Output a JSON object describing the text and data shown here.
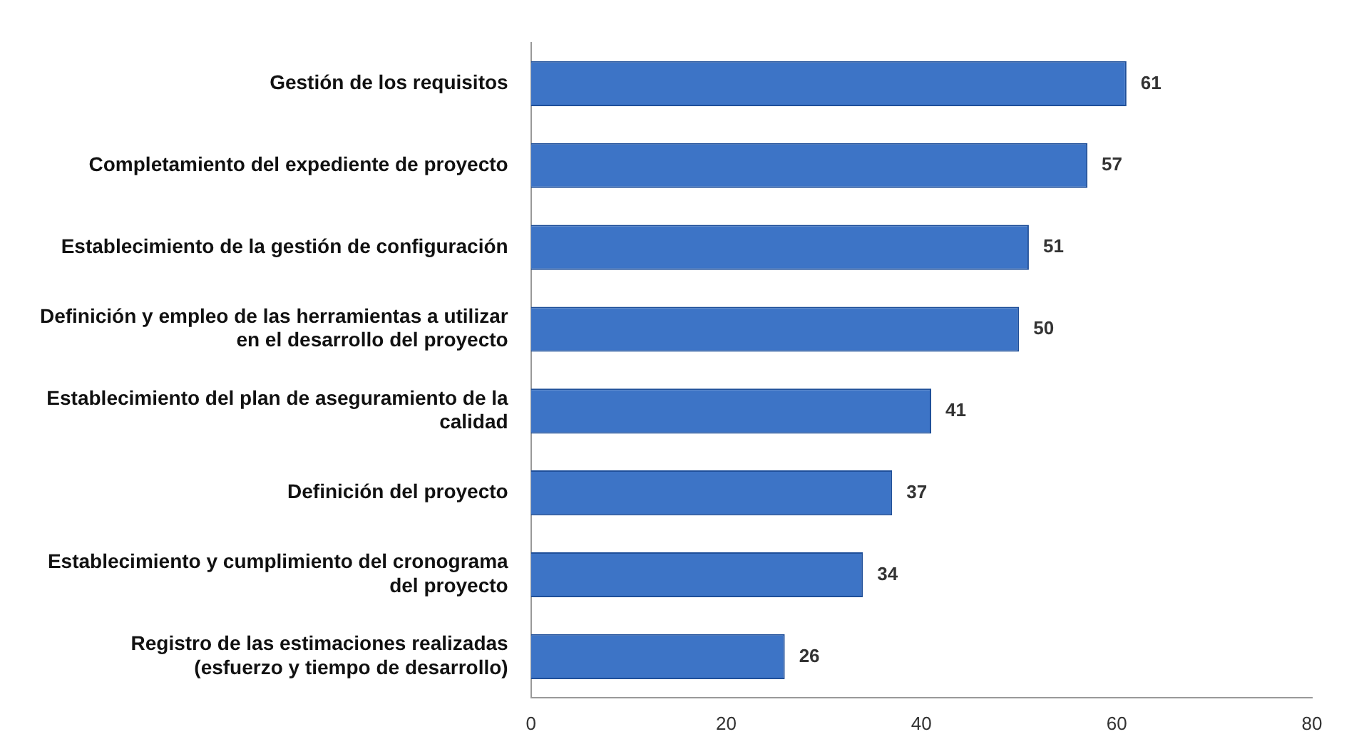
{
  "chart_data": {
    "type": "bar",
    "orientation": "horizontal",
    "categories": [
      "Gestión de los requisitos",
      "Completamiento del expediente de proyecto",
      "Establecimiento de la gestión de configuración",
      "Definición y empleo de las herramientas a utilizar en el desarrollo del proyecto",
      "Establecimiento del plan de aseguramiento de la calidad",
      "Definición del proyecto",
      "Establecimiento y cumplimiento del cronograma del proyecto",
      "Registro de las estimaciones realizadas (esfuerzo y tiempo de desarrollo)"
    ],
    "values": [
      61,
      57,
      51,
      50,
      41,
      37,
      34,
      26
    ],
    "color": "#3d74c6",
    "xlim": [
      0,
      80
    ],
    "xticks": [
      0,
      20,
      40,
      60,
      80
    ],
    "grid": false,
    "legend": false,
    "data_labels": true
  }
}
